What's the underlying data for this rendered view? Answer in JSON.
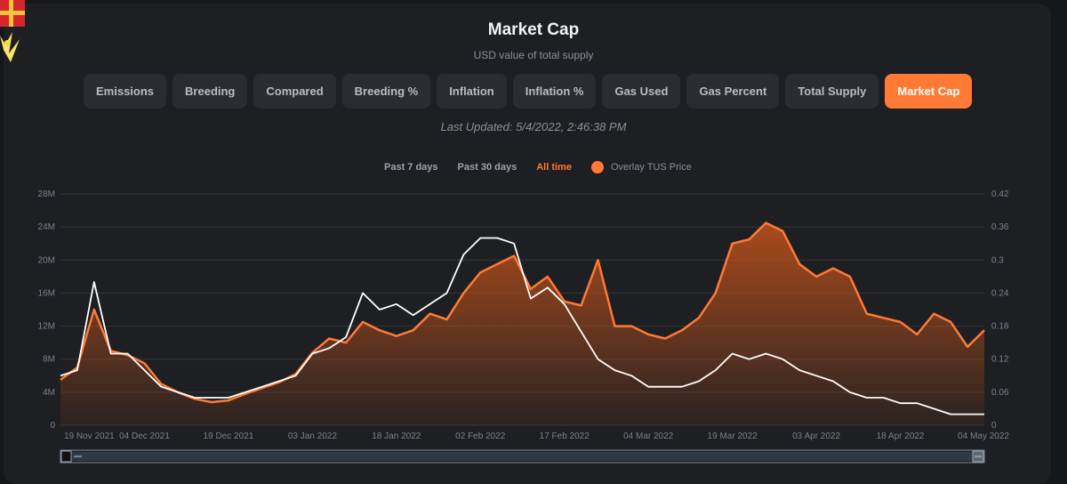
{
  "header": {
    "title": "Market Cap",
    "subtitle": "USD value of total supply"
  },
  "tabs": [
    {
      "label": "Emissions",
      "active": false
    },
    {
      "label": "Breeding",
      "active": false
    },
    {
      "label": "Compared",
      "active": false
    },
    {
      "label": "Breeding %",
      "active": false
    },
    {
      "label": "Inflation",
      "active": false
    },
    {
      "label": "Inflation %",
      "active": false
    },
    {
      "label": "Gas Used",
      "active": false
    },
    {
      "label": "Gas Percent",
      "active": false
    },
    {
      "label": "Total Supply",
      "active": false
    },
    {
      "label": "Market Cap",
      "active": true
    }
  ],
  "last_updated": "Last Updated: 5/4/2022, 2:46:38 PM",
  "ranges": {
    "past7": "Past 7 days",
    "past30": "Past 30 days",
    "all": "All time",
    "active": "all"
  },
  "overlay": {
    "label": "Overlay TUS Price",
    "checked": true
  },
  "colors": {
    "accent": "#ff7a35",
    "price_line": "#ffffff",
    "background": "#1e1f22"
  },
  "chart_data": {
    "type": "area",
    "x": [
      "19 Nov 2021",
      "22 Nov 2021",
      "25 Nov 2021",
      "28 Nov 2021",
      "01 Dec 2021",
      "04 Dec 2021",
      "07 Dec 2021",
      "10 Dec 2021",
      "13 Dec 2021",
      "16 Dec 2021",
      "19 Dec 2021",
      "22 Dec 2021",
      "25 Dec 2021",
      "28 Dec 2021",
      "31 Dec 2021",
      "03 Jan 2022",
      "06 Jan 2022",
      "09 Jan 2022",
      "12 Jan 2022",
      "15 Jan 2022",
      "18 Jan 2022",
      "21 Jan 2022",
      "24 Jan 2022",
      "27 Jan 2022",
      "30 Jan 2022",
      "02 Feb 2022",
      "05 Feb 2022",
      "08 Feb 2022",
      "11 Feb 2022",
      "14 Feb 2022",
      "17 Feb 2022",
      "20 Feb 2022",
      "23 Feb 2022",
      "26 Feb 2022",
      "01 Mar 2022",
      "04 Mar 2022",
      "07 Mar 2022",
      "10 Mar 2022",
      "13 Mar 2022",
      "16 Mar 2022",
      "19 Mar 2022",
      "22 Mar 2022",
      "25 Mar 2022",
      "28 Mar 2022",
      "31 Mar 2022",
      "03 Apr 2022",
      "06 Apr 2022",
      "09 Apr 2022",
      "12 Apr 2022",
      "15 Apr 2022",
      "18 Apr 2022",
      "21 Apr 2022",
      "24 Apr 2022",
      "27 Apr 2022",
      "30 Apr 2022",
      "04 May 2022"
    ],
    "x_ticks": [
      "19 Nov 2021",
      "04 Dec 2021",
      "19 Dec 2021",
      "03 Jan 2022",
      "18 Jan 2022",
      "02 Feb 2022",
      "17 Feb 2022",
      "04 Mar 2022",
      "19 Mar 2022",
      "03 Apr 2022",
      "18 Apr 2022",
      "04 May 2022"
    ],
    "series": [
      {
        "axis": "left",
        "values": [
          5.5,
          7.0,
          14.0,
          9.0,
          8.5,
          7.5,
          5.0,
          4.0,
          3.2,
          2.8,
          3.0,
          3.8,
          4.5,
          5.2,
          6.2,
          8.8,
          10.5,
          10.0,
          12.5,
          11.5,
          10.8,
          11.5,
          13.5,
          12.8,
          16.0,
          18.5,
          19.5,
          20.5,
          16.5,
          18.0,
          15.0,
          14.5,
          20.0,
          12.0,
          12.0,
          11.0,
          10.5,
          11.5,
          13.0,
          16.0,
          22.0,
          22.5,
          24.5,
          23.5,
          19.5,
          18.0,
          19.0,
          18.0,
          13.5,
          13.0,
          12.5,
          11.0,
          13.5,
          12.5,
          9.5,
          11.5
        ]
      },
      {
        "axis": "right",
        "values": [
          0.09,
          0.1,
          0.26,
          0.13,
          0.13,
          0.1,
          0.07,
          0.06,
          0.05,
          0.05,
          0.05,
          0.06,
          0.07,
          0.08,
          0.09,
          0.13,
          0.14,
          0.16,
          0.24,
          0.21,
          0.22,
          0.2,
          0.22,
          0.24,
          0.31,
          0.34,
          0.34,
          0.33,
          0.23,
          0.25,
          0.22,
          0.17,
          0.12,
          0.1,
          0.09,
          0.07,
          0.07,
          0.07,
          0.08,
          0.1,
          0.13,
          0.12,
          0.13,
          0.12,
          0.1,
          0.09,
          0.08,
          0.06,
          0.05,
          0.05,
          0.04,
          0.04,
          0.03,
          0.02,
          0.02,
          0.02
        ]
      }
    ],
    "y_left": {
      "ticks": [
        "0",
        "4M",
        "8M",
        "12M",
        "16M",
        "20M",
        "24M",
        "28M"
      ],
      "ylim": [
        0,
        28
      ]
    },
    "y_right": {
      "ticks": [
        "0",
        "0.06",
        "0.12",
        "0.18",
        "0.24",
        "0.3",
        "0.36",
        "0.42"
      ],
      "ylim": [
        0,
        0.42
      ]
    },
    "grid": true
  }
}
